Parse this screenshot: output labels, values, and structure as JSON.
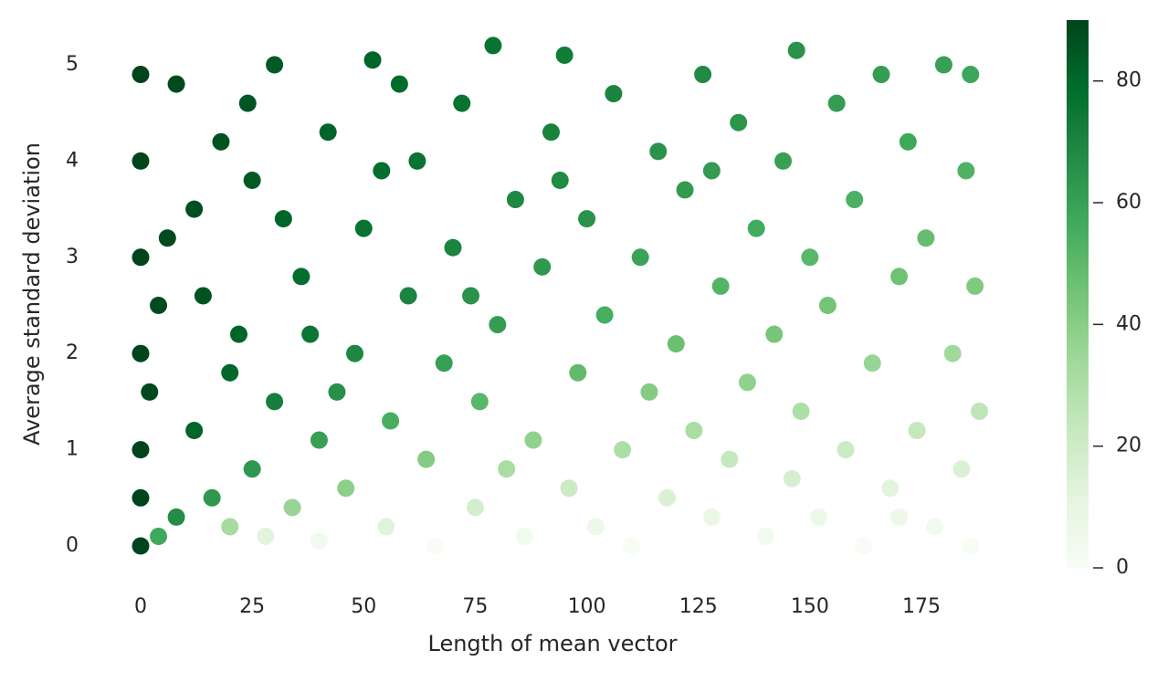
{
  "chart_data": {
    "type": "scatter",
    "xlabel": "Length of mean vector",
    "ylabel": "Average standard deviation",
    "xlim": [
      -7,
      194
    ],
    "ylim": [
      -0.25,
      5.35
    ],
    "xticks": [
      0,
      25,
      50,
      75,
      100,
      125,
      150,
      175
    ],
    "yticks": [
      0,
      1,
      2,
      3,
      4,
      5
    ],
    "colormap": "Greens",
    "clim": [
      0,
      90
    ],
    "cticks": [
      0,
      20,
      40,
      60,
      80
    ],
    "grid": false,
    "x": [
      0,
      0,
      0,
      0,
      0,
      0,
      0,
      4,
      4,
      8,
      8,
      12,
      12,
      16,
      18,
      20,
      22,
      25,
      25,
      28,
      30,
      30,
      34,
      36,
      40,
      40,
      42,
      46,
      48,
      50,
      52,
      55,
      56,
      60,
      62,
      64,
      66,
      68,
      70,
      72,
      75,
      76,
      79,
      80,
      82,
      84,
      86,
      88,
      90,
      92,
      95,
      96,
      98,
      100,
      102,
      104,
      106,
      108,
      110,
      112,
      114,
      116,
      118,
      120,
      122,
      124,
      126,
      128,
      130,
      132,
      134,
      136,
      138,
      140,
      142,
      144,
      146,
      147,
      148,
      150,
      152,
      154,
      156,
      158,
      160,
      162,
      164,
      166,
      168,
      170,
      172,
      174,
      176,
      178,
      180,
      182,
      184,
      185,
      186,
      187,
      188,
      186,
      2,
      6,
      14,
      20,
      24,
      32,
      38,
      44,
      54,
      58,
      74,
      94,
      128,
      170
    ],
    "y": [
      0,
      1.0,
      2.0,
      3.0,
      4.0,
      4.9,
      0.5,
      0.1,
      2.5,
      0.3,
      4.8,
      1.2,
      3.5,
      0.5,
      4.2,
      0.2,
      2.2,
      0.8,
      3.8,
      0.1,
      1.5,
      5.0,
      0.4,
      2.8,
      0.05,
      1.1,
      4.3,
      0.6,
      2.0,
      3.3,
      5.05,
      0.2,
      1.3,
      2.6,
      4.0,
      0.9,
      0.0,
      1.9,
      3.1,
      4.6,
      0.4,
      1.5,
      5.2,
      2.3,
      0.8,
      3.6,
      0.1,
      1.1,
      2.9,
      4.3,
      5.1,
      0.6,
      1.8,
      3.4,
      0.2,
      2.4,
      4.7,
      1.0,
      0.0,
      3.0,
      1.6,
      4.1,
      0.5,
      2.1,
      3.7,
      1.2,
      4.9,
      0.3,
      2.7,
      0.9,
      4.4,
      1.7,
      3.3,
      0.1,
      2.2,
      4.0,
      0.7,
      5.15,
      1.4,
      3.0,
      0.3,
      2.5,
      4.6,
      1.0,
      3.6,
      0.0,
      1.9,
      4.9,
      0.6,
      2.8,
      4.2,
      1.2,
      3.2,
      0.2,
      5.0,
      2.0,
      0.8,
      3.9,
      4.9,
      2.7,
      1.4,
      0.0,
      1.6,
      3.2,
      2.6,
      1.8,
      4.6,
      3.4,
      2.2,
      1.6,
      3.9,
      4.8,
      2.6,
      3.8,
      3.9,
      0.3
    ],
    "color_values": [
      90,
      90,
      90,
      90,
      90,
      90,
      90,
      57,
      88,
      67,
      88,
      81,
      87,
      63,
      86,
      32,
      81,
      63,
      84,
      12,
      72,
      84,
      36,
      78,
      4,
      60,
      81,
      39,
      69,
      76,
      81,
      13,
      55,
      70,
      76,
      41,
      0,
      60,
      70,
      76,
      18,
      51,
      76,
      61,
      31,
      69,
      4,
      38,
      63,
      71,
      73,
      21,
      49,
      65,
      7,
      55,
      70,
      30,
      0,
      59,
      41,
      65,
      15,
      47,
      62,
      31,
      68,
      8,
      52,
      23,
      64,
      38,
      56,
      3,
      44,
      60,
      17,
      65,
      30,
      51,
      7,
      45,
      61,
      21,
      54,
      0,
      36,
      61,
      12,
      46,
      57,
      23,
      48,
      4,
      60,
      34,
      15,
      53,
      58,
      42,
      25,
      0,
      89,
      88,
      86,
      80,
      85,
      81,
      75,
      66,
      78,
      79,
      65,
      68,
      62,
      6
    ]
  }
}
